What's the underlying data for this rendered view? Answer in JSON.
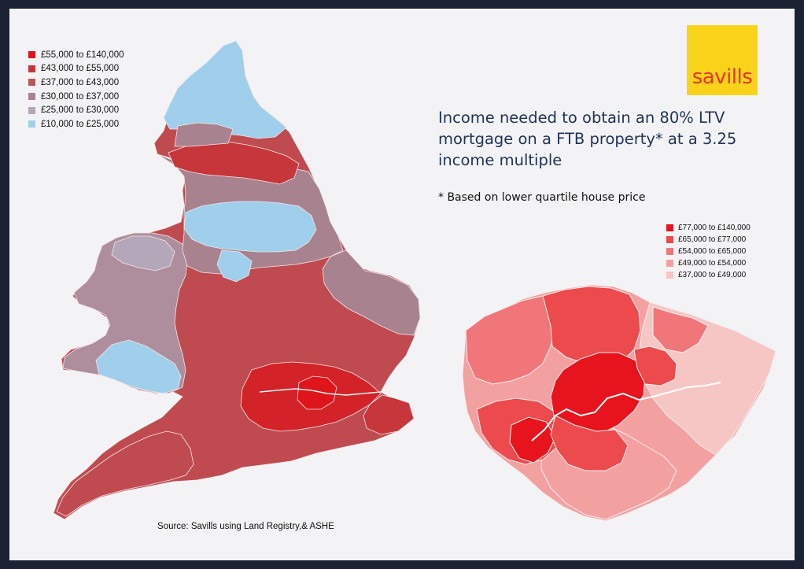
{
  "title": "Income needed to obtain an 80% LTV mortgage on a FTB property* at a 3.25 income multiple",
  "footnote": "* Based on lower quartile house price",
  "source": "Source: Savills using Land Registry,& ASHE",
  "logo": {
    "text": "savills",
    "background": "#f8d31a",
    "text_color": "#e53524"
  },
  "england_legend": [
    {
      "label": "£55,000 to £140,000",
      "color": "#e0141b"
    },
    {
      "label": "£43,000 to £55,000",
      "color": "#c6363a"
    },
    {
      "label": "£37,000 to £43,000",
      "color": "#b8595e"
    },
    {
      "label": "£30,000 to £37,000",
      "color": "#a9828f"
    },
    {
      "label": "£25,000 to £30,000",
      "color": "#b4a7b9"
    },
    {
      "label": "£10,000 to £25,000",
      "color": "#9fcfea"
    }
  ],
  "london_legend": [
    {
      "label": "£77,000 to £140,000",
      "color": "#e8141d"
    },
    {
      "label": "£65,000 to £77,000",
      "color": "#ec4a4d"
    },
    {
      "label": "£54,000 to £65,000",
      "color": "#f07679"
    },
    {
      "label": "£49,000 to £54,000",
      "color": "#f3a0a1"
    },
    {
      "label": "£37,000 to £49,000",
      "color": "#f6c6c4"
    }
  ]
}
